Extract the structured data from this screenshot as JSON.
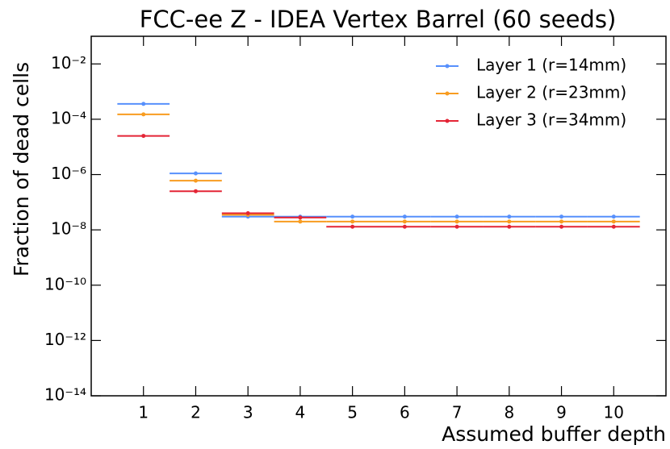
{
  "chart_data": {
    "type": "errorbar",
    "title": "FCC-ee Z - IDEA Vertex Barrel (60 seeds)",
    "xlabel": "Assumed buffer depth",
    "ylabel": "Fraction of dead cells",
    "x": [
      1,
      2,
      3,
      4,
      5,
      6,
      7,
      8,
      9,
      10
    ],
    "bin_width": 1,
    "series": [
      {
        "name": "Layer 1 (r=14mm)",
        "color": "#5790fc",
        "values": [
          0.00036,
          1.1e-06,
          3e-08,
          3e-08,
          3e-08,
          3e-08,
          3e-08,
          3e-08,
          3e-08,
          3e-08
        ]
      },
      {
        "name": "Layer 2 (r=23mm)",
        "color": "#f89c20",
        "values": [
          0.00015,
          6e-07,
          3.5e-08,
          2e-08,
          2e-08,
          2e-08,
          2e-08,
          2e-08,
          2e-08,
          2e-08
        ]
      },
      {
        "name": "Layer 3 (r=34mm)",
        "color": "#e42536",
        "values": [
          2.5e-05,
          2.5e-07,
          4e-08,
          2.8e-08,
          1.3e-08,
          1.3e-08,
          1.3e-08,
          1.3e-08,
          1.3e-08,
          1.3e-08
        ]
      }
    ],
    "xlim": [
      0,
      11
    ],
    "xticks": [
      1,
      2,
      3,
      4,
      5,
      6,
      7,
      8,
      9,
      10
    ],
    "ylim": [
      1e-14,
      0.1
    ],
    "yscale": "log",
    "yticks": [
      {
        "value": 1e-14,
        "label": "10⁻¹⁴"
      },
      {
        "value": 1e-12,
        "label": "10⁻¹²"
      },
      {
        "value": 1e-10,
        "label": "10⁻¹⁰"
      },
      {
        "value": 1e-08,
        "label": "10⁻⁸"
      },
      {
        "value": 1e-06,
        "label": "10⁻⁶"
      },
      {
        "value": 0.0001,
        "label": "10⁻⁴"
      },
      {
        "value": 0.01,
        "label": "10⁻²"
      }
    ],
    "legend": "upper right"
  }
}
